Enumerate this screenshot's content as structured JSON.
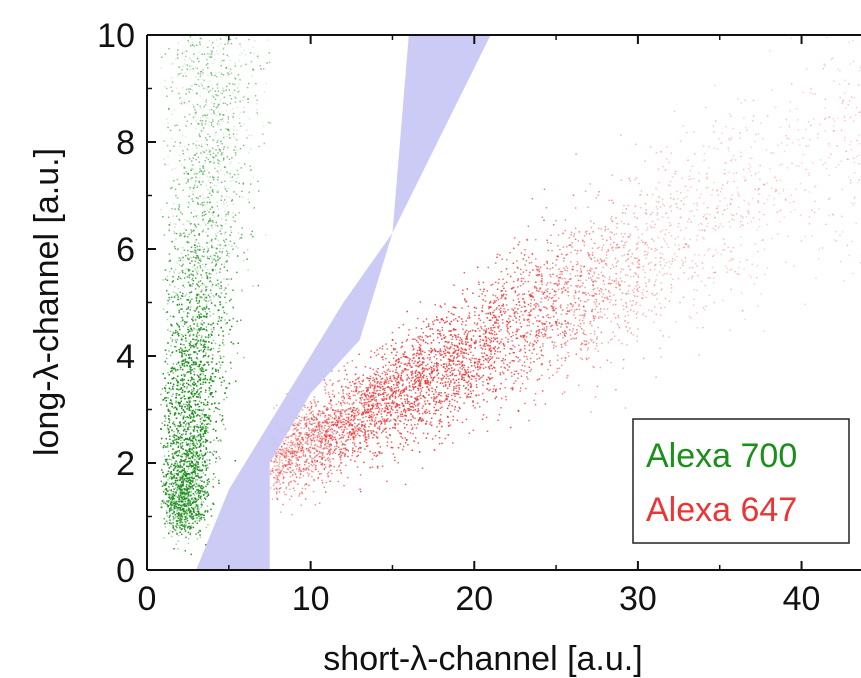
{
  "chart_data": {
    "type": "scatter",
    "title": "",
    "xlabel": "short-λ-channel [a.u.]",
    "ylabel": "long-λ-channel [a.u.]",
    "xlim": [
      0,
      44
    ],
    "ylim": [
      0,
      10
    ],
    "x_ticks": [
      "0",
      "10",
      "20",
      "30",
      "40"
    ],
    "y_ticks": [
      "0",
      "2",
      "4",
      "6",
      "8",
      "10"
    ],
    "grid": false,
    "legend_position": "bottom-right",
    "series": [
      {
        "name": "Alexa 700",
        "color": "#1a8f1a",
        "distribution": {
          "x_range": [
            1,
            7
          ],
          "y_range": [
            1,
            10
          ],
          "densest_at": [
            2.5,
            3
          ]
        }
      },
      {
        "name": "Alexa 647",
        "color": "#ee3333",
        "distribution": {
          "x_range": [
            7,
            44
          ],
          "y_range": [
            1.5,
            9
          ],
          "densest_at": [
            18,
            3.5
          ]
        }
      }
    ],
    "separation_band": {
      "color": "#c8c8f4",
      "left_edge": [
        [
          3,
          0
        ],
        [
          5,
          1.5
        ],
        [
          7,
          2.5
        ],
        [
          10,
          4
        ],
        [
          12,
          5
        ],
        [
          15,
          6.3
        ],
        [
          16,
          10
        ]
      ],
      "right_edge": [
        [
          7.5,
          0
        ],
        [
          7.5,
          2
        ],
        [
          10,
          3.3
        ],
        [
          13,
          4.3
        ],
        [
          15,
          6.3
        ],
        [
          21,
          10
        ]
      ]
    }
  }
}
